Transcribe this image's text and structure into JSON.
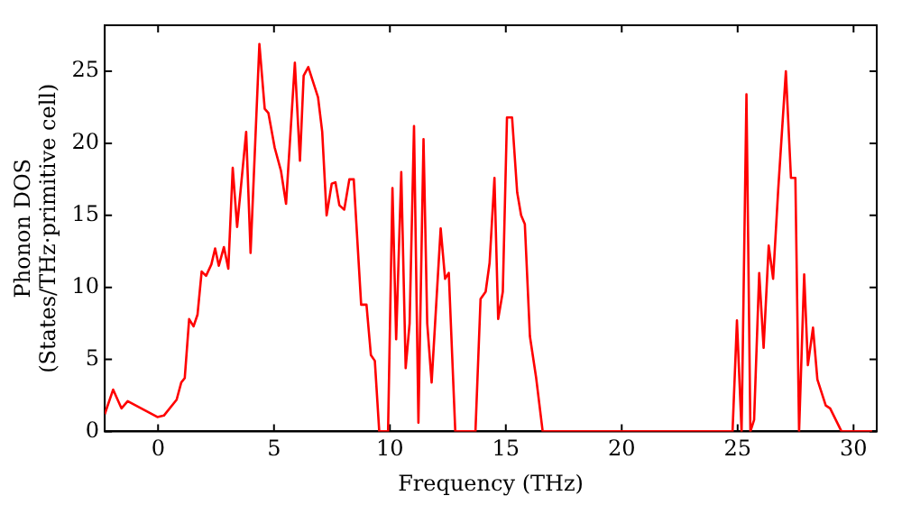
{
  "chart_data": {
    "type": "line",
    "xlabel": "Frequency (THz)",
    "ylabel": "Phonon DOS\n(States/THz·primitive cell)",
    "xlim": [
      -2.3,
      31
    ],
    "ylim": [
      0,
      28.2
    ],
    "xticks": [
      0,
      5,
      10,
      15,
      20,
      25,
      30
    ],
    "yticks": [
      0,
      5,
      10,
      15,
      20,
      25
    ],
    "grid": false,
    "legend": false,
    "marker": "none",
    "line_style": "solid",
    "series": [
      {
        "color": "#ff0000",
        "x": [
          -2.3,
          -1.94,
          -1.58,
          -1.31,
          -0.03,
          0.25,
          0.8,
          1.0,
          1.15,
          1.34,
          1.53,
          1.7,
          1.88,
          2.07,
          2.3,
          2.46,
          2.62,
          2.84,
          3.03,
          3.22,
          3.41,
          3.8,
          3.99,
          4.37,
          4.6,
          4.76,
          5.03,
          5.3,
          5.52,
          5.9,
          6.12,
          6.28,
          6.48,
          6.9,
          7.08,
          7.27,
          7.49,
          7.65,
          7.82,
          8.03,
          8.25,
          8.44,
          8.76,
          8.99,
          9.18,
          9.35,
          9.54,
          9.92,
          10.11,
          10.27,
          10.49,
          10.68,
          10.85,
          11.04,
          11.23,
          11.45,
          11.61,
          11.8,
          12.19,
          12.38,
          12.54,
          12.82,
          13.69,
          13.91,
          14.13,
          14.3,
          14.51,
          14.67,
          14.87,
          15.05,
          15.27,
          15.49,
          15.66,
          15.82,
          16.04,
          16.31,
          16.59,
          24.78,
          24.97,
          25.17,
          25.38,
          25.55,
          25.71,
          25.93,
          26.12,
          26.34,
          26.53,
          26.75,
          27.08,
          27.3,
          27.49,
          27.65,
          27.87,
          28.03,
          28.25,
          28.44,
          28.8,
          28.99,
          29.48,
          30.8
        ],
        "values": [
          1.2,
          2.9,
          1.6,
          2.1,
          1.0,
          1.1,
          2.2,
          3.4,
          3.7,
          7.8,
          7.3,
          8.1,
          11.1,
          10.8,
          11.6,
          12.7,
          11.5,
          12.8,
          11.3,
          18.3,
          14.2,
          20.8,
          12.4,
          26.9,
          22.4,
          22.1,
          19.7,
          18.1,
          15.8,
          25.6,
          18.8,
          24.7,
          25.3,
          23.2,
          20.8,
          15.0,
          17.2,
          17.3,
          15.7,
          15.4,
          17.5,
          17.5,
          8.8,
          8.8,
          5.3,
          4.9,
          0,
          0,
          16.9,
          6.4,
          18.0,
          4.4,
          7.5,
          21.2,
          0.6,
          20.3,
          7.5,
          3.4,
          14.1,
          10.6,
          11.0,
          0,
          0,
          9.2,
          9.7,
          11.7,
          17.6,
          7.8,
          9.7,
          21.8,
          21.8,
          16.6,
          15.0,
          14.4,
          6.6,
          3.7,
          0,
          0,
          7.7,
          0,
          23.4,
          0,
          0.8,
          11.0,
          5.8,
          12.9,
          10.6,
          16.8,
          25.0,
          17.6,
          17.6,
          0,
          10.9,
          4.6,
          7.2,
          3.6,
          1.8,
          1.6,
          0,
          0
        ]
      }
    ]
  }
}
